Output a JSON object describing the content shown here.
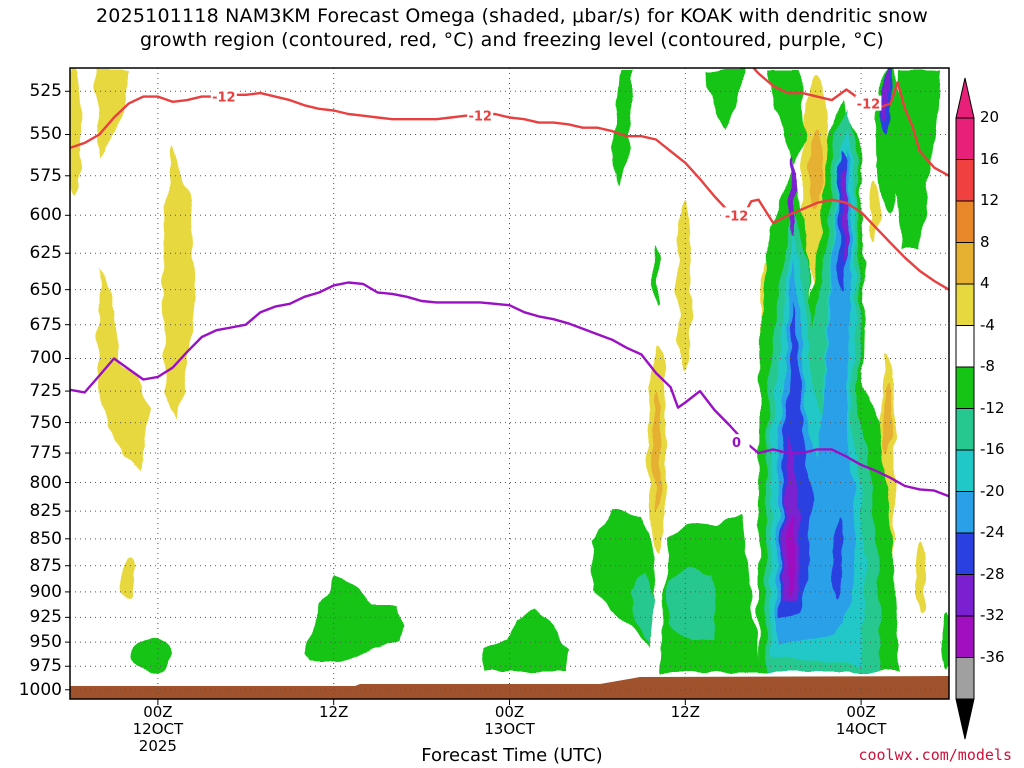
{
  "title": {
    "line1": "2025101118 NAM3KM Forecast Omega (shaded, μbar/s) for KOAK with dendritic snow",
    "line2": "growth region (contoured, red, °C) and freezing level (contoured, purple, °C)"
  },
  "credit": "coolwx.com/models",
  "chart_data": {
    "type": "time-height cross section (filled contour)",
    "xlabel": "Forecast Time (UTC)",
    "ylabel": "",
    "x_range_hours": [
      -6,
      54
    ],
    "y_range_hpa": [
      512,
      1010
    ],
    "y_ticks": [
      525,
      550,
      575,
      600,
      625,
      650,
      675,
      700,
      725,
      750,
      775,
      800,
      825,
      850,
      875,
      900,
      925,
      950,
      975,
      1000
    ],
    "x_ticks": [
      {
        "hour": 0,
        "lines": [
          "00Z",
          "12OCT",
          "2025"
        ]
      },
      {
        "hour": 12,
        "lines": [
          "12Z"
        ]
      },
      {
        "hour": 24,
        "lines": [
          "00Z",
          "13OCT"
        ]
      },
      {
        "hour": 36,
        "lines": [
          "12Z"
        ]
      },
      {
        "hour": 48,
        "lines": [
          "00Z",
          "14OCT"
        ]
      }
    ],
    "grid": true,
    "colorbar": {
      "labels": [
        "20",
        "16",
        "12",
        "8",
        "4",
        "-4",
        "-8",
        "-12",
        "-16",
        "-20",
        "-24",
        "-28",
        "-32",
        "-36"
      ],
      "bins": [
        {
          "range": [
            20,
            24
          ],
          "color": "#e8207a"
        },
        {
          "range": [
            16,
            20
          ],
          "color": "#f04040"
        },
        {
          "range": [
            12,
            16
          ],
          "color": "#e8882a"
        },
        {
          "range": [
            8,
            12
          ],
          "color": "#e6b030"
        },
        {
          "range": [
            4,
            8
          ],
          "color": "#e8d840"
        },
        {
          "range": [
            -4,
            4
          ],
          "color": "#ffffff"
        },
        {
          "range": [
            -8,
            -4
          ],
          "color": "#16c416"
        },
        {
          "range": [
            -12,
            -8
          ],
          "color": "#26c890"
        },
        {
          "range": [
            -16,
            -12
          ],
          "color": "#20c8c8"
        },
        {
          "range": [
            -20,
            -16
          ],
          "color": "#2aa0e8"
        },
        {
          "range": [
            -24,
            -20
          ],
          "color": "#2a40e0"
        },
        {
          "range": [
            -28,
            -24
          ],
          "color": "#7a20d0"
        },
        {
          "range": [
            -32,
            -28
          ],
          "color": "#a010c0"
        },
        {
          "range": [
            -36,
            -32
          ],
          "color": "#a0a0a0"
        }
      ],
      "under_color": "#000000",
      "over_color": "#e8207a"
    },
    "contours": [
      {
        "label": "-12",
        "color": "#e84040",
        "points": [
          [
            -6,
            558
          ],
          [
            -5,
            555
          ],
          [
            -4,
            550
          ],
          [
            -3,
            540
          ],
          [
            -2,
            532
          ],
          [
            -1,
            528
          ],
          [
            0,
            528
          ],
          [
            1,
            531
          ],
          [
            2,
            530
          ],
          [
            3,
            528
          ],
          [
            4,
            528
          ],
          [
            5,
            527
          ],
          [
            6,
            527
          ],
          [
            7,
            526
          ],
          [
            8,
            528
          ],
          [
            9,
            530
          ],
          [
            10,
            533
          ],
          [
            11,
            535
          ],
          [
            12,
            536
          ],
          [
            13,
            538
          ],
          [
            14,
            539
          ],
          [
            15,
            540
          ],
          [
            16,
            541
          ],
          [
            17,
            541
          ],
          [
            18,
            541
          ],
          [
            19,
            541
          ],
          [
            20,
            540
          ],
          [
            21,
            539
          ],
          [
            22,
            539
          ],
          [
            23,
            538
          ],
          [
            24,
            540
          ],
          [
            25,
            541
          ],
          [
            26,
            543
          ],
          [
            27,
            543
          ],
          [
            28,
            544
          ],
          [
            29,
            546
          ],
          [
            30,
            546
          ],
          [
            31,
            548
          ],
          [
            32,
            551
          ],
          [
            33,
            551
          ],
          [
            34,
            553
          ],
          [
            35,
            560
          ],
          [
            36,
            567
          ],
          [
            37,
            577
          ],
          [
            38,
            588
          ],
          [
            39,
            598
          ],
          [
            40,
            600
          ],
          [
            40.5,
            591
          ],
          [
            41,
            590
          ],
          [
            42,
            605
          ],
          [
            43,
            600
          ],
          [
            44,
            596
          ],
          [
            45,
            592
          ],
          [
            46,
            590
          ],
          [
            47,
            592
          ],
          [
            48,
            598
          ],
          [
            49,
            608
          ],
          [
            50,
            618
          ],
          [
            51,
            628
          ],
          [
            52,
            637
          ],
          [
            53,
            644
          ],
          [
            54,
            650
          ]
        ]
      },
      {
        "label": "-12",
        "color": "#e84040",
        "points": [
          [
            40,
            506
          ],
          [
            41,
            515
          ],
          [
            42,
            522
          ],
          [
            43,
            526
          ],
          [
            44,
            526
          ],
          [
            45,
            528
          ],
          [
            46,
            530
          ],
          [
            47,
            524
          ],
          [
            48,
            530
          ],
          [
            49,
            535
          ],
          [
            50,
            532
          ],
          [
            50.5,
            520
          ],
          [
            51,
            535
          ],
          [
            51.5,
            545
          ],
          [
            52,
            560
          ],
          [
            53,
            570
          ],
          [
            54,
            575
          ]
        ]
      },
      {
        "label": "0",
        "color": "#9a10c4",
        "points": [
          [
            -6,
            724
          ],
          [
            -5,
            726
          ],
          [
            -4,
            713
          ],
          [
            -3,
            700
          ],
          [
            -2,
            708
          ],
          [
            -1,
            716
          ],
          [
            0,
            714
          ],
          [
            1,
            707
          ],
          [
            2,
            695
          ],
          [
            3,
            684
          ],
          [
            4,
            679
          ],
          [
            5,
            677
          ],
          [
            6,
            675
          ],
          [
            7,
            666
          ],
          [
            8,
            662
          ],
          [
            9,
            660
          ],
          [
            10,
            655
          ],
          [
            11,
            652
          ],
          [
            12,
            647
          ],
          [
            13,
            645
          ],
          [
            14,
            646
          ],
          [
            15,
            652
          ],
          [
            16,
            653
          ],
          [
            17,
            655
          ],
          [
            18,
            658
          ],
          [
            19,
            659
          ],
          [
            20,
            659
          ],
          [
            21,
            659
          ],
          [
            22,
            659
          ],
          [
            23,
            660
          ],
          [
            24,
            661
          ],
          [
            25,
            666
          ],
          [
            26,
            669
          ],
          [
            27,
            671
          ],
          [
            28,
            674
          ],
          [
            29,
            678
          ],
          [
            30,
            682
          ],
          [
            31,
            686
          ],
          [
            32,
            692
          ],
          [
            33,
            697
          ],
          [
            34,
            711
          ],
          [
            35,
            722
          ],
          [
            35.5,
            738
          ],
          [
            36,
            734
          ],
          [
            37,
            725
          ],
          [
            38,
            740
          ],
          [
            39,
            752
          ],
          [
            40,
            765
          ],
          [
            41,
            775
          ],
          [
            42,
            772
          ],
          [
            43,
            775
          ],
          [
            44,
            775
          ],
          [
            45,
            772
          ],
          [
            46,
            772
          ],
          [
            47,
            778
          ],
          [
            48,
            785
          ],
          [
            49,
            790
          ],
          [
            50,
            796
          ],
          [
            51,
            803
          ],
          [
            52,
            806
          ],
          [
            53,
            807
          ],
          [
            54,
            812
          ]
        ]
      }
    ]
  }
}
